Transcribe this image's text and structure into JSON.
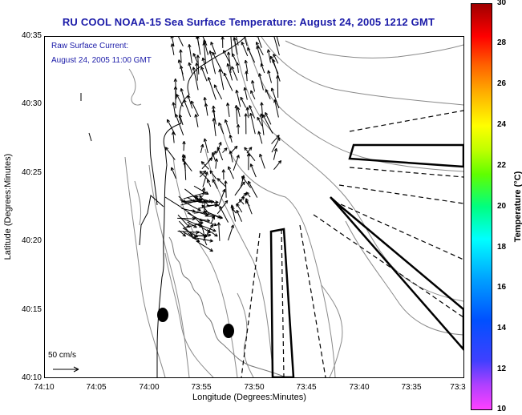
{
  "title": "RU COOL  NOAA-15  Sea Surface Temperature:  August 24, 2005 1212 GMT",
  "annotation": {
    "line1": "Raw Surface Current:",
    "line2": "August 24, 2005 11:00 GMT"
  },
  "scale": {
    "label": "50 cm/s"
  },
  "axes": {
    "xlabel": "Longitude (Degrees:Minutes)",
    "ylabel": "Latitude (Degrees:Minutes)",
    "xticks": [
      "74:10",
      "74:05",
      "74:00",
      "73:55",
      "73:50",
      "73:45",
      "73:40",
      "73:35",
      "73:3"
    ],
    "yticks": [
      "40:35",
      "40:30",
      "40:25",
      "40:20",
      "40:15",
      "40:10"
    ]
  },
  "colorbar": {
    "label": "Temperature (°C)",
    "ticks": [
      "30",
      "28",
      "26",
      "24",
      "22",
      "20",
      "18",
      "16",
      "14",
      "12",
      "10"
    ],
    "range": [
      10,
      30
    ]
  },
  "colors": {
    "title": "#1a1aa8",
    "coast": "#000000",
    "bathymetry": "#888888"
  }
}
